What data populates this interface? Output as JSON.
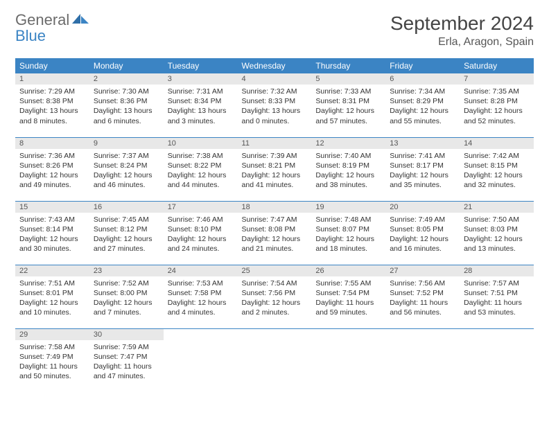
{
  "logo": {
    "text1": "General",
    "text2": "Blue"
  },
  "title": "September 2024",
  "location": "Erla, Aragon, Spain",
  "colors": {
    "header_bg": "#3b84c4",
    "daynum_bg": "#e8e8e8",
    "row_border": "#3b84c4",
    "logo_gray": "#6b6b6b",
    "logo_blue": "#3b84c4"
  },
  "weekdays": [
    "Sunday",
    "Monday",
    "Tuesday",
    "Wednesday",
    "Thursday",
    "Friday",
    "Saturday"
  ],
  "weeks": [
    [
      {
        "n": "1",
        "sunrise": "Sunrise: 7:29 AM",
        "sunset": "Sunset: 8:38 PM",
        "day1": "Daylight: 13 hours",
        "day2": "and 8 minutes."
      },
      {
        "n": "2",
        "sunrise": "Sunrise: 7:30 AM",
        "sunset": "Sunset: 8:36 PM",
        "day1": "Daylight: 13 hours",
        "day2": "and 6 minutes."
      },
      {
        "n": "3",
        "sunrise": "Sunrise: 7:31 AM",
        "sunset": "Sunset: 8:34 PM",
        "day1": "Daylight: 13 hours",
        "day2": "and 3 minutes."
      },
      {
        "n": "4",
        "sunrise": "Sunrise: 7:32 AM",
        "sunset": "Sunset: 8:33 PM",
        "day1": "Daylight: 13 hours",
        "day2": "and 0 minutes."
      },
      {
        "n": "5",
        "sunrise": "Sunrise: 7:33 AM",
        "sunset": "Sunset: 8:31 PM",
        "day1": "Daylight: 12 hours",
        "day2": "and 57 minutes."
      },
      {
        "n": "6",
        "sunrise": "Sunrise: 7:34 AM",
        "sunset": "Sunset: 8:29 PM",
        "day1": "Daylight: 12 hours",
        "day2": "and 55 minutes."
      },
      {
        "n": "7",
        "sunrise": "Sunrise: 7:35 AM",
        "sunset": "Sunset: 8:28 PM",
        "day1": "Daylight: 12 hours",
        "day2": "and 52 minutes."
      }
    ],
    [
      {
        "n": "8",
        "sunrise": "Sunrise: 7:36 AM",
        "sunset": "Sunset: 8:26 PM",
        "day1": "Daylight: 12 hours",
        "day2": "and 49 minutes."
      },
      {
        "n": "9",
        "sunrise": "Sunrise: 7:37 AM",
        "sunset": "Sunset: 8:24 PM",
        "day1": "Daylight: 12 hours",
        "day2": "and 46 minutes."
      },
      {
        "n": "10",
        "sunrise": "Sunrise: 7:38 AM",
        "sunset": "Sunset: 8:22 PM",
        "day1": "Daylight: 12 hours",
        "day2": "and 44 minutes."
      },
      {
        "n": "11",
        "sunrise": "Sunrise: 7:39 AM",
        "sunset": "Sunset: 8:21 PM",
        "day1": "Daylight: 12 hours",
        "day2": "and 41 minutes."
      },
      {
        "n": "12",
        "sunrise": "Sunrise: 7:40 AM",
        "sunset": "Sunset: 8:19 PM",
        "day1": "Daylight: 12 hours",
        "day2": "and 38 minutes."
      },
      {
        "n": "13",
        "sunrise": "Sunrise: 7:41 AM",
        "sunset": "Sunset: 8:17 PM",
        "day1": "Daylight: 12 hours",
        "day2": "and 35 minutes."
      },
      {
        "n": "14",
        "sunrise": "Sunrise: 7:42 AM",
        "sunset": "Sunset: 8:15 PM",
        "day1": "Daylight: 12 hours",
        "day2": "and 32 minutes."
      }
    ],
    [
      {
        "n": "15",
        "sunrise": "Sunrise: 7:43 AM",
        "sunset": "Sunset: 8:14 PM",
        "day1": "Daylight: 12 hours",
        "day2": "and 30 minutes."
      },
      {
        "n": "16",
        "sunrise": "Sunrise: 7:45 AM",
        "sunset": "Sunset: 8:12 PM",
        "day1": "Daylight: 12 hours",
        "day2": "and 27 minutes."
      },
      {
        "n": "17",
        "sunrise": "Sunrise: 7:46 AM",
        "sunset": "Sunset: 8:10 PM",
        "day1": "Daylight: 12 hours",
        "day2": "and 24 minutes."
      },
      {
        "n": "18",
        "sunrise": "Sunrise: 7:47 AM",
        "sunset": "Sunset: 8:08 PM",
        "day1": "Daylight: 12 hours",
        "day2": "and 21 minutes."
      },
      {
        "n": "19",
        "sunrise": "Sunrise: 7:48 AM",
        "sunset": "Sunset: 8:07 PM",
        "day1": "Daylight: 12 hours",
        "day2": "and 18 minutes."
      },
      {
        "n": "20",
        "sunrise": "Sunrise: 7:49 AM",
        "sunset": "Sunset: 8:05 PM",
        "day1": "Daylight: 12 hours",
        "day2": "and 16 minutes."
      },
      {
        "n": "21",
        "sunrise": "Sunrise: 7:50 AM",
        "sunset": "Sunset: 8:03 PM",
        "day1": "Daylight: 12 hours",
        "day2": "and 13 minutes."
      }
    ],
    [
      {
        "n": "22",
        "sunrise": "Sunrise: 7:51 AM",
        "sunset": "Sunset: 8:01 PM",
        "day1": "Daylight: 12 hours",
        "day2": "and 10 minutes."
      },
      {
        "n": "23",
        "sunrise": "Sunrise: 7:52 AM",
        "sunset": "Sunset: 8:00 PM",
        "day1": "Daylight: 12 hours",
        "day2": "and 7 minutes."
      },
      {
        "n": "24",
        "sunrise": "Sunrise: 7:53 AM",
        "sunset": "Sunset: 7:58 PM",
        "day1": "Daylight: 12 hours",
        "day2": "and 4 minutes."
      },
      {
        "n": "25",
        "sunrise": "Sunrise: 7:54 AM",
        "sunset": "Sunset: 7:56 PM",
        "day1": "Daylight: 12 hours",
        "day2": "and 2 minutes."
      },
      {
        "n": "26",
        "sunrise": "Sunrise: 7:55 AM",
        "sunset": "Sunset: 7:54 PM",
        "day1": "Daylight: 11 hours",
        "day2": "and 59 minutes."
      },
      {
        "n": "27",
        "sunrise": "Sunrise: 7:56 AM",
        "sunset": "Sunset: 7:52 PM",
        "day1": "Daylight: 11 hours",
        "day2": "and 56 minutes."
      },
      {
        "n": "28",
        "sunrise": "Sunrise: 7:57 AM",
        "sunset": "Sunset: 7:51 PM",
        "day1": "Daylight: 11 hours",
        "day2": "and 53 minutes."
      }
    ],
    [
      {
        "n": "29",
        "sunrise": "Sunrise: 7:58 AM",
        "sunset": "Sunset: 7:49 PM",
        "day1": "Daylight: 11 hours",
        "day2": "and 50 minutes."
      },
      {
        "n": "30",
        "sunrise": "Sunrise: 7:59 AM",
        "sunset": "Sunset: 7:47 PM",
        "day1": "Daylight: 11 hours",
        "day2": "and 47 minutes."
      },
      {
        "empty": true
      },
      {
        "empty": true
      },
      {
        "empty": true
      },
      {
        "empty": true
      },
      {
        "empty": true
      }
    ]
  ]
}
